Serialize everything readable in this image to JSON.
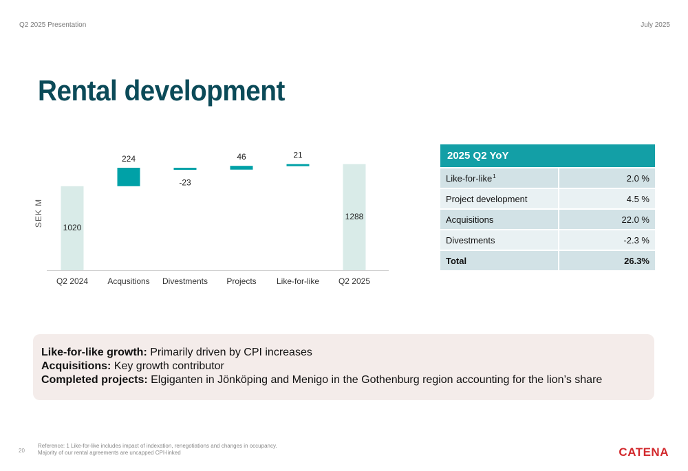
{
  "header": {
    "left": "Q2 2025 Presentation",
    "right": "July 2025"
  },
  "title": "Rental development",
  "chart_data": {
    "type": "bar",
    "subtype": "waterfall",
    "categories": [
      "Q2 2024",
      "Acqusitions",
      "Divestments",
      "Projects",
      "Like-for-like",
      "Q2 2025"
    ],
    "values": [
      1020,
      224,
      -23,
      46,
      21,
      1288
    ],
    "value_labels": [
      "1020",
      "224",
      "-23",
      "46",
      "21",
      "1288"
    ],
    "kinds": [
      "total",
      "delta",
      "delta",
      "delta",
      "delta",
      "total"
    ],
    "ylabel": "SEK M",
    "xlabel": "",
    "colors": {
      "total": "#d9ebe8",
      "delta": "#00a1a7",
      "axis": "#d0d0d0"
    },
    "grid": false
  },
  "table": {
    "header": "2025 Q2 YoY",
    "rows": [
      {
        "label": "Like-for-like",
        "sup": "1",
        "value": "2.0 %"
      },
      {
        "label": "Project development",
        "sup": "",
        "value": "4.5 %"
      },
      {
        "label": "Acquisitions",
        "sup": "",
        "value": "22.0 %"
      },
      {
        "label": "Divestments",
        "sup": "",
        "value": "-2.3 %"
      }
    ],
    "total": {
      "label": "Total",
      "value": "26.3%"
    }
  },
  "notes": [
    {
      "bold": "Like-for-like growth:",
      "text": " Primarily driven by CPI increases"
    },
    {
      "bold": "Acquisitions:",
      "text": " Key growth contributor"
    },
    {
      "bold": "Completed projects:",
      "text": " Elgiganten in Jönköping and Menigo in the Gothenburg region accounting for the lion’s share"
    }
  ],
  "footer": {
    "page": "20",
    "reference": "Reference: 1 Like-for-like includes impact of indexation, renegotiations and changes in occupancy. Majority of our rental agreements are uncapped CPI-linked",
    "logo": "CATENA"
  }
}
